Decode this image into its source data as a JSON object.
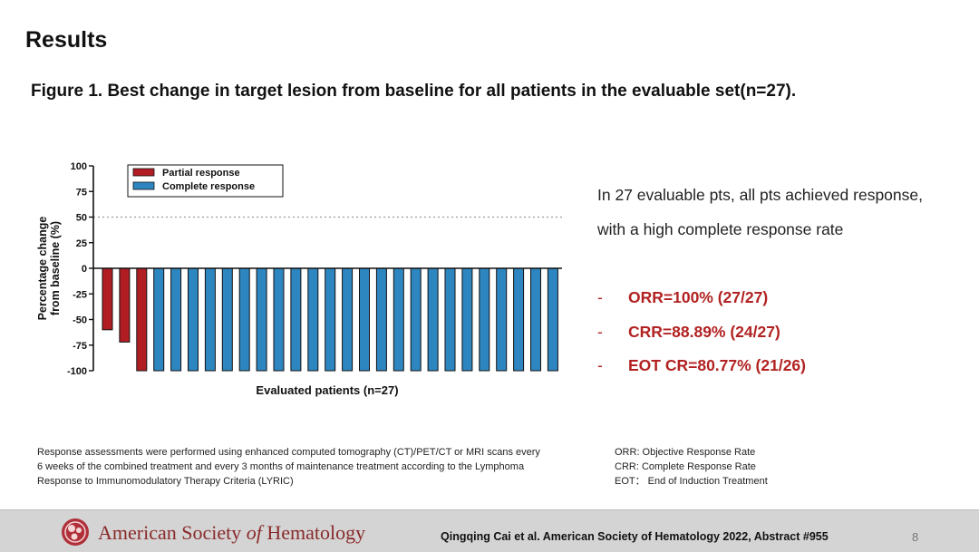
{
  "slide": {
    "title": "Results",
    "figure_title": "Figure 1. Best change in target lesion from baseline for all patients in the evaluable set(n=27)."
  },
  "chart_data": {
    "type": "bar",
    "ylabel": "Percentage change\nfrom baseline (%)",
    "xlabel": "Evaluated patients (n=27)",
    "ylim": [
      -100,
      100
    ],
    "yticks": [
      100,
      75,
      50,
      25,
      0,
      -25,
      -50,
      -75,
      -100
    ],
    "reference_line": 50,
    "legend": [
      {
        "name": "Partial response",
        "color": "#b01e23"
      },
      {
        "name": "Complete response",
        "color": "#2e86c1"
      }
    ],
    "series": [
      {
        "name": "Partial response",
        "color": "#b01e23",
        "values": [
          -60,
          -72,
          -100
        ]
      },
      {
        "name": "Complete response",
        "color": "#2e86c1",
        "values": [
          -100,
          -100,
          -100,
          -100,
          -100,
          -100,
          -100,
          -100,
          -100,
          -100,
          -100,
          -100,
          -100,
          -100,
          -100,
          -100,
          -100,
          -100,
          -100,
          -100,
          -100,
          -100,
          -100,
          -100
        ]
      }
    ]
  },
  "summary": {
    "text": "In 27 evaluable pts, all pts achieved response, with a high complete response rate",
    "bullets": [
      "ORR=100% (27/27)",
      "CRR=88.89% (24/27)",
      "EOT CR=80.77% (21/26)"
    ],
    "bullet_marker": "-",
    "accent_color": "#b22222"
  },
  "footnote": "Response assessments were performed using enhanced computed tomography (CT)/PET/CT or MRI scans every 6 weeks of the combined treatment and every 3 months of maintenance treatment according to the Lymphoma Response to Immunomodulatory Therapy Criteria (LYRIC)",
  "abbreviations": [
    "ORR: Objective Response Rate",
    "CRR: Complete Response Rate",
    "EOT： End of Induction Treatment"
  ],
  "footer": {
    "org_name_part1": "American Society ",
    "org_name_of": "of",
    "org_name_part2": " Hematology",
    "citation": "Qingqing Cai et al. American Society of Hematology 2022, Abstract #955",
    "page_number": "8",
    "brand_color": "#8a2a2a"
  }
}
